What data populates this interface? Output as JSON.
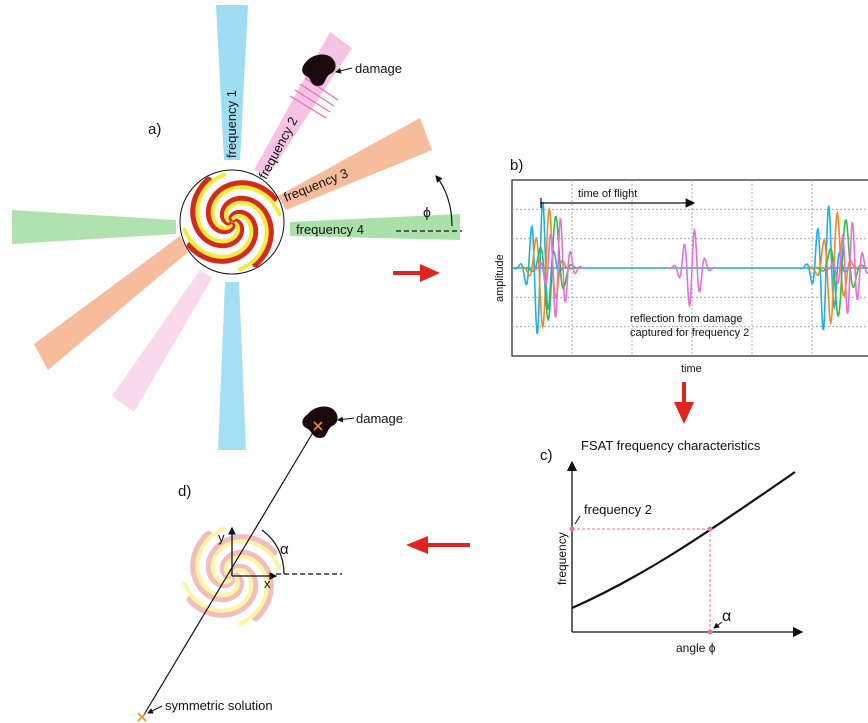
{
  "panel_a": {
    "label": "a)",
    "beam_labels": [
      "frequency 1",
      "frequency 2",
      "frequency 3",
      "frequency 4"
    ],
    "damage_label": "damage",
    "angle_symbol": "ϕ",
    "colors": {
      "freq1": "#7fd1ee",
      "freq2": "#f4a9d8",
      "freq3": "#f3a67a",
      "freq4": "#8fd68f",
      "spiral_red": "#d42a1e",
      "spiral_yellow": "#f4ec3a"
    }
  },
  "panel_b": {
    "label": "b)",
    "time_of_flight_label": "time of flight",
    "y_label": "amplitude",
    "x_label": "time",
    "annotation_line1": "reflection from damage",
    "annotation_line2": "captured for frequency 2",
    "signal_colors": [
      "#1eb0e6",
      "#f08a28",
      "#3ab84a",
      "#e870d6",
      "#18b8b0"
    ]
  },
  "panel_c": {
    "label": "c)",
    "title": "FSAT frequency characteristics",
    "freq_marker": "frequency 2",
    "alpha": "α",
    "y_label": "frequency",
    "x_label": "angle ϕ"
  },
  "panel_d": {
    "label": "d)",
    "damage_label": "damage",
    "symmetric_label": "symmetric solution",
    "axis_y": "y",
    "axis_x": "x",
    "alpha": "α"
  },
  "arrow_color": "#e3241e"
}
